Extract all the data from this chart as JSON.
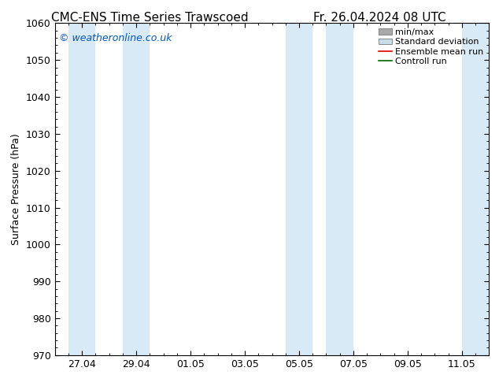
{
  "title_left": "CMC-ENS Time Series Trawscoed",
  "title_right": "Fr. 26.04.2024 08 UTC",
  "ylabel": "Surface Pressure (hPa)",
  "ylim": [
    970,
    1060
  ],
  "yticks": [
    970,
    980,
    990,
    1000,
    1010,
    1020,
    1030,
    1040,
    1050,
    1060
  ],
  "xtick_labels": [
    "27.04",
    "29.04",
    "01.05",
    "03.05",
    "05.05",
    "07.05",
    "09.05",
    "11.05"
  ],
  "xtick_positions": [
    1,
    3,
    5,
    7,
    9,
    11,
    13,
    15
  ],
  "xlim": [
    0,
    16
  ],
  "shade_bands": [
    {
      "x_start": 0.5,
      "x_end": 1.5,
      "color": "#d8eaf6"
    },
    {
      "x_start": 2.5,
      "x_end": 3.5,
      "color": "#d8eaf6"
    },
    {
      "x_start": 8.5,
      "x_end": 9.5,
      "color": "#d8eaf6"
    },
    {
      "x_start": 10.0,
      "x_end": 11.0,
      "color": "#d8eaf6"
    },
    {
      "x_start": 15.0,
      "x_end": 16.0,
      "color": "#d8eaf6"
    }
  ],
  "watermark_text": "© weatheronline.co.uk",
  "watermark_color": "#0055cc",
  "background_color": "#ffffff",
  "plot_bg_color": "#ffffff",
  "legend_items": [
    {
      "label": "min/max",
      "color": "#aaaaaa",
      "style": "bar"
    },
    {
      "label": "Standard deviation",
      "color": "#c8dcea",
      "style": "bar"
    },
    {
      "label": "Ensemble mean run",
      "color": "#dd0000",
      "style": "line"
    },
    {
      "label": "Controll run",
      "color": "#006600",
      "style": "line"
    }
  ],
  "title_fontsize": 11,
  "axis_label_fontsize": 9,
  "tick_fontsize": 9,
  "legend_fontsize": 8,
  "num_x_steps": 16
}
